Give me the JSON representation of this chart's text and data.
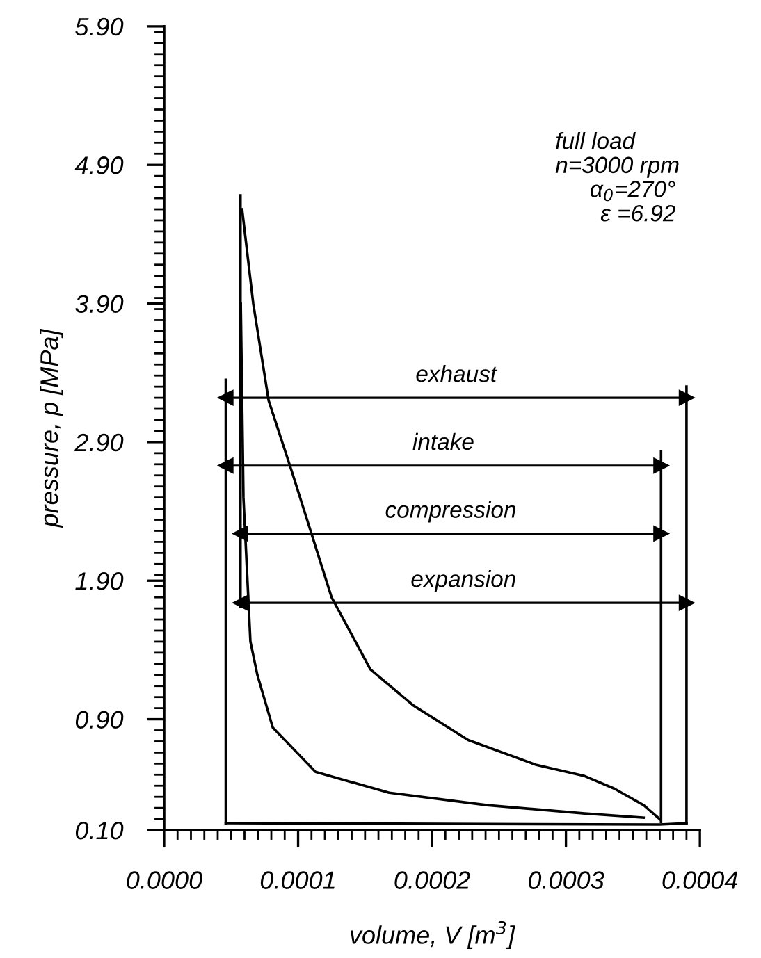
{
  "chart_data": {
    "type": "line",
    "xlabel": "volume, V [m$^{3}$]",
    "ylabel": "pressure, p [MPa]",
    "xlim": [
      0,
      0.0004
    ],
    "xticks": [
      {
        "value": 0,
        "label": "0.0000"
      },
      {
        "value": 0.0001,
        "label": "0.0001"
      },
      {
        "value": 0.0002,
        "label": "0.0002"
      },
      {
        "value": 0.0003,
        "label": "0.0003"
      },
      {
        "value": 0.0004,
        "label": "0.0004"
      }
    ],
    "ylim": [
      0.1,
      5.9
    ],
    "yticks": [
      {
        "value": 0.1,
        "label": "0.10"
      },
      {
        "value": 0.9,
        "label": "0.90"
      },
      {
        "value": 1.9,
        "label": "1.90"
      },
      {
        "value": 2.9,
        "label": "2.90"
      },
      {
        "value": 3.9,
        "label": "3.90"
      },
      {
        "value": 4.9,
        "label": "4.90"
      },
      {
        "value": 5.9,
        "label": "5.90"
      }
    ],
    "grid": false,
    "legend": false,
    "marker": "none",
    "line_style": "solid",
    "annotations": [
      "full load",
      "n=3000 rpm",
      "α$_{0}$=270°",
      "ε =6.92"
    ],
    "series": [
      {
        "color": "#000000",
        "x": [
          5.72e-05,
          5.92e-05,
          6.44e-05,
          6.96e-05,
          8.11e-05,
          0.000113,
          0.000168,
          0.000241,
          0.000314,
          0.000358
        ],
        "values": [
          3.9,
          2.5,
          1.46,
          1.22,
          0.84,
          0.52,
          0.37,
          0.28,
          0.22,
          0.19
        ]
      },
      {
        "color": "#000000",
        "x": [
          5.82e-05,
          6.65e-05,
          7.8e-05,
          9.56e-05,
          0.000125,
          0.000154,
          0.000186,
          0.000227,
          0.000278,
          0.000314,
          0.000336,
          0.000358,
          0.00037
        ],
        "values": [
          4.58,
          3.9,
          3.2,
          2.68,
          1.78,
          1.26,
          1.0,
          0.75,
          0.57,
          0.49,
          0.4,
          0.28,
          0.18
        ]
      },
      {
        "color": "#000000",
        "x": [
          4.6e-05,
          0.00037,
          0.00039
        ],
        "values": [
          0.15,
          0.14,
          0.15
        ]
      },
      {
        "color": "#000000",
        "x": [
          4.6e-05,
          4.6e-05
        ],
        "values": [
          0.15,
          3.35
        ]
      },
      {
        "color": "#000000",
        "x": [
          0.00039,
          0.00039
        ],
        "values": [
          0.15,
          3.3
        ]
      },
      {
        "color": "#000000",
        "x": [
          0.000371,
          0.000371
        ],
        "values": [
          0.16,
          2.83
        ]
      },
      {
        "color": "#000000",
        "x": [
          5.7e-05,
          5.7e-05
        ],
        "values": [
          1.71,
          4.68
        ]
      },
      {
        "name": "exhaust",
        "marker": "triangle",
        "color": "#000000",
        "x": [
          4.6e-05,
          0.00039
        ],
        "values": [
          3.22,
          3.22
        ]
      },
      {
        "name": "intake",
        "marker": "triangle",
        "color": "#000000",
        "x": [
          4.6e-05,
          0.000371
        ],
        "values": [
          2.73,
          2.73
        ]
      },
      {
        "name": "compression",
        "marker": "triangle",
        "color": "#000000",
        "x": [
          5.7e-05,
          0.000371
        ],
        "values": [
          2.24,
          2.24
        ]
      },
      {
        "name": "expansion",
        "marker": "triangle",
        "color": "#000000",
        "x": [
          5.7e-05,
          0.00039
        ],
        "values": [
          1.74,
          1.74
        ]
      }
    ]
  }
}
